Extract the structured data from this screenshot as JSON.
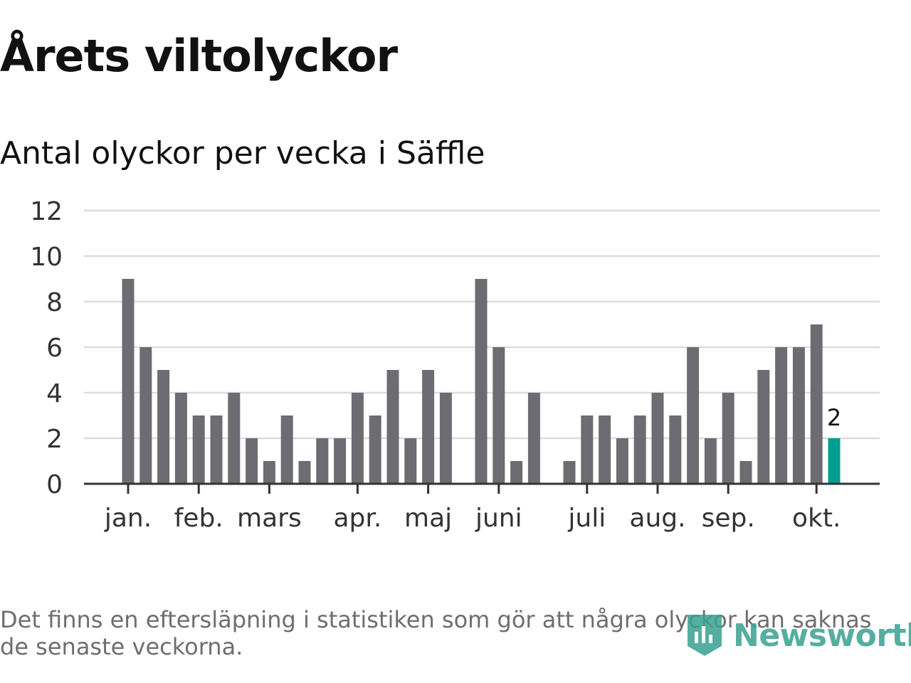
{
  "header": {
    "title": "Årets viltolyckor",
    "subtitle": "Antal olyckor per vecka i Säffle"
  },
  "chart_data": {
    "type": "bar",
    "title": "Årets viltolyckor",
    "subtitle": "Antal olyckor per vecka i Säffle",
    "xlabel": "",
    "ylabel": "Antal olyckor per vecka",
    "ylim": [
      0,
      12
    ],
    "yticks": [
      0,
      2,
      4,
      6,
      8,
      10,
      12
    ],
    "grid": true,
    "values": [
      9,
      6,
      5,
      4,
      3,
      3,
      4,
      2,
      1,
      3,
      1,
      2,
      2,
      4,
      3,
      5,
      2,
      5,
      4,
      0,
      9,
      6,
      1,
      4,
      0,
      1,
      3,
      3,
      2,
      3,
      4,
      3,
      6,
      2,
      4,
      1,
      5,
      6,
      6,
      7,
      2
    ],
    "month_ticks": [
      {
        "label": "jan.",
        "week_index": 0
      },
      {
        "label": "feb.",
        "week_index": 4
      },
      {
        "label": "mars",
        "week_index": 8
      },
      {
        "label": "apr.",
        "week_index": 13
      },
      {
        "label": "maj",
        "week_index": 17
      },
      {
        "label": "juni",
        "week_index": 21
      },
      {
        "label": "juli",
        "week_index": 26
      },
      {
        "label": "aug.",
        "week_index": 30
      },
      {
        "label": "sep.",
        "week_index": 34
      },
      {
        "label": "okt.",
        "week_index": 39
      }
    ],
    "highlight": {
      "week_index": 40,
      "value": 2,
      "label": "2"
    },
    "colors": {
      "bar": "#6d6c72",
      "highlight": "#009e90",
      "grid": "#dddddd",
      "axis": "#333333",
      "tick_text": "#333333"
    }
  },
  "footer": {
    "note": "Det finns en eftersläpning i statistiken som gör att några olyckor kan saknas de senaste veckorna.",
    "logo": {
      "name": "Newsworthy",
      "icon": "newsworthy-logo-icon",
      "color": "#38a18f"
    }
  }
}
